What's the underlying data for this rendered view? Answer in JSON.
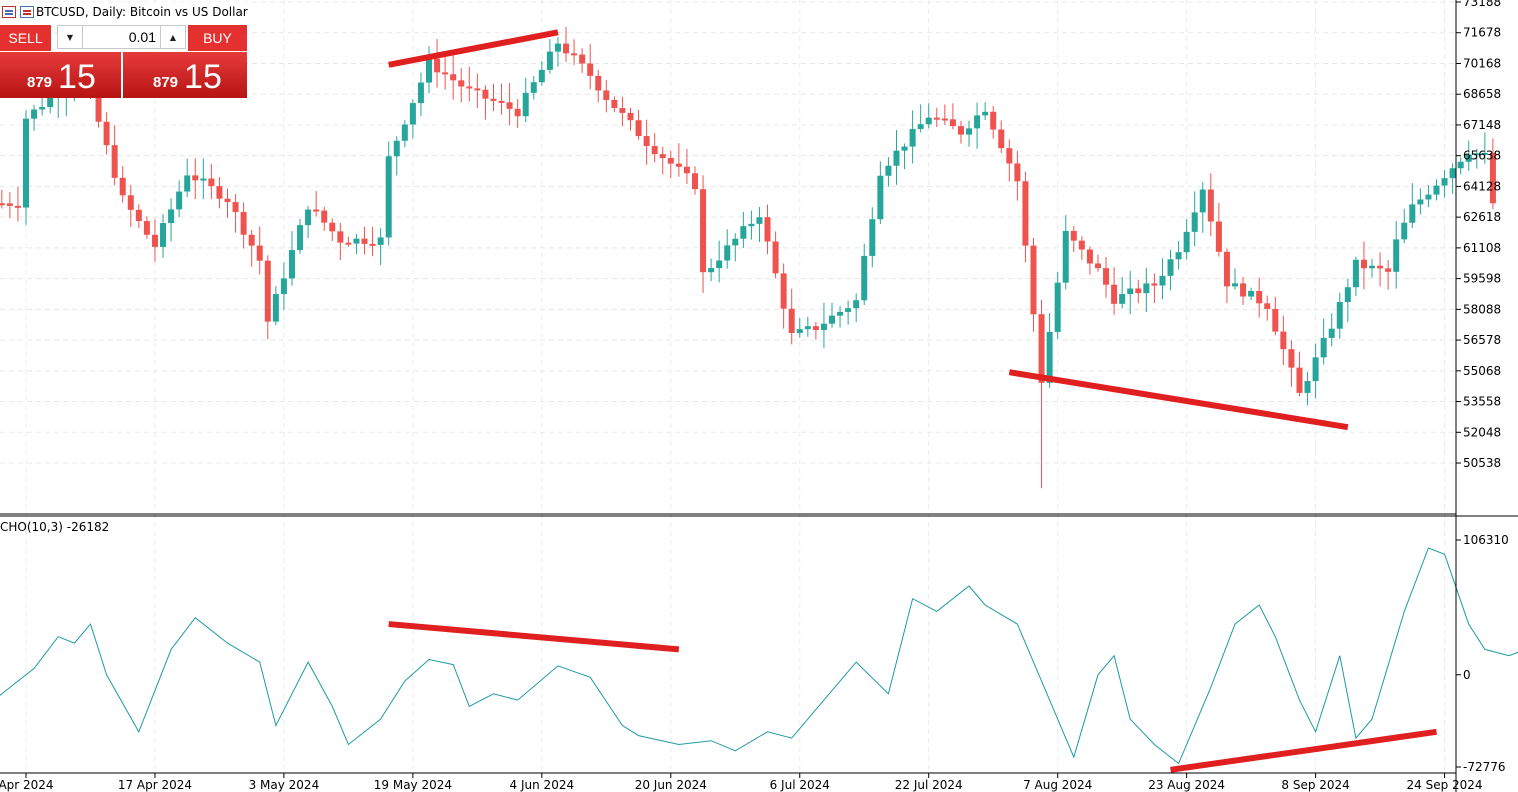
{
  "window": {
    "symbol_title": "BTCUSD, Daily:  Bitcoin vs US Dollar"
  },
  "trade_panel": {
    "sell_label": "SELL",
    "buy_label": "BUY",
    "lot_value": "0.01",
    "sell_price_small": "879",
    "sell_price_big": "15",
    "buy_price_small": "879",
    "buy_price_big": "15",
    "button_color": "#e53030"
  },
  "chart_data": [
    {
      "type": "candlestick",
      "symbol": "BTCUSD",
      "timeframe": "Daily",
      "up_color": "#26a69a",
      "down_color": "#ef5350",
      "y_ticks": [
        73188,
        71678,
        70168,
        68658,
        67148,
        65638,
        64128,
        62618,
        61108,
        59598,
        58088,
        56578,
        55068,
        53558,
        52048,
        50538
      ],
      "ylim": [
        49016,
        73188
      ],
      "x_ticks": [
        "Apr 2024",
        "17 Apr 2024",
        "3 May 2024",
        "19 May 2024",
        "4 Jun 2024",
        "20 Jun 2024",
        "6 Jul 2024",
        "22 Jul 2024",
        "7 Aug 2024",
        "23 Aug 2024",
        "8 Sep 2024",
        "24 Sep 2024"
      ],
      "anchors": [
        [
          "2024-04-01",
          67500
        ],
        [
          "2024-04-08",
          69800
        ],
        [
          "2024-04-13",
          63500
        ],
        [
          "2024-04-17",
          61200
        ],
        [
          "2024-04-21",
          64800
        ],
        [
          "2024-04-26",
          63500
        ],
        [
          "2024-04-30",
          60500
        ],
        [
          "2024-05-01",
          57500
        ],
        [
          "2024-05-06",
          63200
        ],
        [
          "2024-05-10",
          61500
        ],
        [
          "2024-05-15",
          61500
        ],
        [
          "2024-05-16",
          65500
        ],
        [
          "2024-05-21",
          70200
        ],
        [
          "2024-05-26",
          68800
        ],
        [
          "2024-06-01",
          67800
        ],
        [
          "2024-06-06",
          71200
        ],
        [
          "2024-06-10",
          69600
        ],
        [
          "2024-06-12",
          68500
        ],
        [
          "2024-06-17",
          66300
        ],
        [
          "2024-06-23",
          64200
        ],
        [
          "2024-06-24",
          59800
        ],
        [
          "2024-07-01",
          62800
        ],
        [
          "2024-07-05",
          56800
        ],
        [
          "2024-07-08",
          57200
        ],
        [
          "2024-07-13",
          58500
        ],
        [
          "2024-07-16",
          64900
        ],
        [
          "2024-07-22",
          67600
        ],
        [
          "2024-07-26",
          66800
        ],
        [
          "2024-07-29",
          68000
        ],
        [
          "2024-08-02",
          64400
        ],
        [
          "2024-08-05",
          54600
        ],
        [
          "2024-08-08",
          61800
        ],
        [
          "2024-08-12",
          60000
        ],
        [
          "2024-08-14",
          58600
        ],
        [
          "2024-08-19",
          59300
        ],
        [
          "2024-08-22",
          61100
        ],
        [
          "2024-08-25",
          64100
        ],
        [
          "2024-08-28",
          59400
        ],
        [
          "2024-09-02",
          58300
        ],
        [
          "2024-09-06",
          53900
        ],
        [
          "2024-09-10",
          57300
        ],
        [
          "2024-09-13",
          60300
        ],
        [
          "2024-09-17",
          59900
        ],
        [
          "2024-09-18",
          61400
        ],
        [
          "2024-09-20",
          63100
        ],
        [
          "2024-09-27",
          65900
        ],
        [
          "2024-09-29",
          65600
        ],
        [
          "2024-09-30",
          63300
        ]
      ],
      "trendlines": [
        {
          "from": [
            "2024-05-16",
            70100
          ],
          "to": [
            "2024-06-06",
            71700
          ]
        },
        {
          "from": [
            "2024-08-01",
            55000
          ],
          "to": [
            "2024-09-12",
            52300
          ]
        }
      ]
    },
    {
      "type": "line",
      "indicator_label": "CHO(10,3) -26182",
      "line_color": "#1f9aa6",
      "y_ticks": [
        106310,
        0,
        -72776
      ],
      "ylim": [
        -72776,
        106310
      ],
      "series": [
        {
          "values": [
            [
              "2024-03-28",
              -20000
            ],
            [
              "2024-04-02",
              5000
            ],
            [
              "2024-04-05",
              30000
            ],
            [
              "2024-04-07",
              25000
            ],
            [
              "2024-04-09",
              40000
            ],
            [
              "2024-04-11",
              0
            ],
            [
              "2024-04-15",
              -45000
            ],
            [
              "2024-04-19",
              20000
            ],
            [
              "2024-04-22",
              45000
            ],
            [
              "2024-04-26",
              25000
            ],
            [
              "2024-04-30",
              10000
            ],
            [
              "2024-05-02",
              -40000
            ],
            [
              "2024-05-06",
              10000
            ],
            [
              "2024-05-09",
              -25000
            ],
            [
              "2024-05-11",
              -55000
            ],
            [
              "2024-05-15",
              -35000
            ],
            [
              "2024-05-18",
              -5000
            ],
            [
              "2024-05-21",
              12000
            ],
            [
              "2024-05-24",
              8000
            ],
            [
              "2024-05-26",
              -25000
            ],
            [
              "2024-05-29",
              -15000
            ],
            [
              "2024-06-01",
              -20000
            ],
            [
              "2024-06-06",
              7000
            ],
            [
              "2024-06-10",
              -2000
            ],
            [
              "2024-06-14",
              -40000
            ],
            [
              "2024-06-16",
              -48000
            ],
            [
              "2024-06-21",
              -55000
            ],
            [
              "2024-06-25",
              -52000
            ],
            [
              "2024-06-28",
              -60000
            ],
            [
              "2024-07-02",
              -45000
            ],
            [
              "2024-07-05",
              -50000
            ],
            [
              "2024-07-09",
              -20000
            ],
            [
              "2024-07-13",
              10000
            ],
            [
              "2024-07-17",
              -15000
            ],
            [
              "2024-07-20",
              60000
            ],
            [
              "2024-07-23",
              50000
            ],
            [
              "2024-07-27",
              70000
            ],
            [
              "2024-07-29",
              55000
            ],
            [
              "2024-08-02",
              40000
            ],
            [
              "2024-08-06",
              -20000
            ],
            [
              "2024-08-09",
              -65000
            ],
            [
              "2024-08-12",
              0
            ],
            [
              "2024-08-14",
              15000
            ],
            [
              "2024-08-16",
              -35000
            ],
            [
              "2024-08-19",
              -55000
            ],
            [
              "2024-08-22",
              -70000
            ],
            [
              "2024-08-26",
              -10000
            ],
            [
              "2024-08-29",
              40000
            ],
            [
              "2024-09-01",
              55000
            ],
            [
              "2024-09-03",
              30000
            ],
            [
              "2024-09-06",
              -20000
            ],
            [
              "2024-09-08",
              -45000
            ],
            [
              "2024-09-11",
              15000
            ],
            [
              "2024-09-13",
              -50000
            ],
            [
              "2024-09-15",
              -35000
            ],
            [
              "2024-09-19",
              50000
            ],
            [
              "2024-09-22",
              100000
            ],
            [
              "2024-09-24",
              95000
            ],
            [
              "2024-09-27",
              40000
            ],
            [
              "2024-09-29",
              20000
            ],
            [
              "2024-10-02",
              15000
            ],
            [
              "2024-10-06",
              25000
            ],
            [
              "2024-10-09",
              15000
            ],
            [
              "2024-10-13",
              -28000
            ]
          ]
        }
      ],
      "trendlines": [
        {
          "from": [
            "2024-05-16",
            40000
          ],
          "to": [
            "2024-06-21",
            20000
          ]
        },
        {
          "from": [
            "2024-08-21",
            -75000
          ],
          "to": [
            "2024-09-23",
            -45000
          ]
        }
      ]
    }
  ]
}
